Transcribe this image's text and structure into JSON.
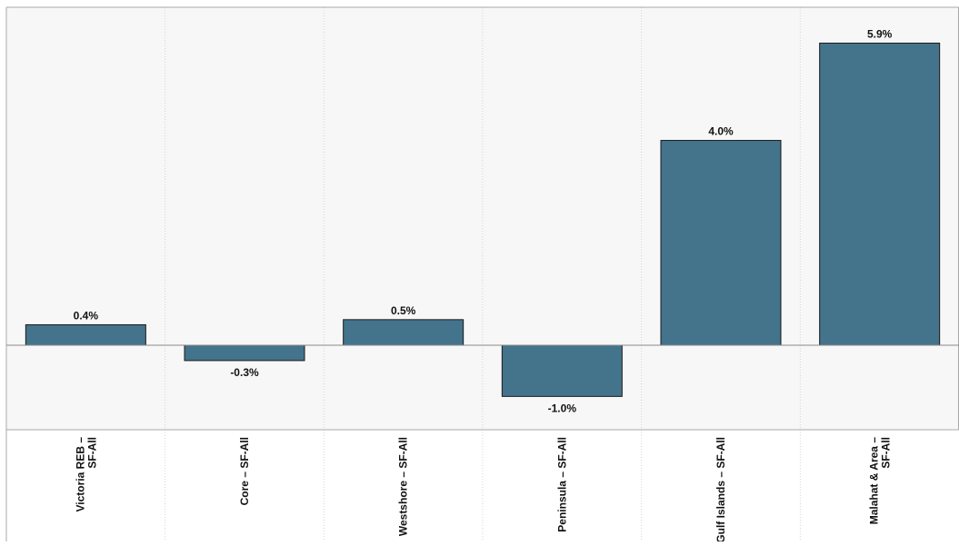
{
  "colors": {
    "bar": "#44738c",
    "bar_stroke": "#1a1a1a",
    "plot_background": "#f7f7f7",
    "grid": "#d4d4d4",
    "axis": "#a8a8a8",
    "zero_line": "#8a8a8a",
    "text": "#111111"
  },
  "chart_data": {
    "type": "bar",
    "categories": [
      "Victoria REB – SF-All",
      "Core – SF-All",
      "Westshore – SF-All",
      "Peninsula – SF-All",
      "Gulf Islands – SF-All",
      "Malahat & Area – SF-All"
    ],
    "tick_label_lines": [
      [
        "Victoria REB –",
        "SF-All"
      ],
      [
        "Core – SF-All"
      ],
      [
        "Westshore – SF-All"
      ],
      [
        "Peninsula – SF-All"
      ],
      [
        "Gulf Islands – SF-All"
      ],
      [
        "Malahat & Area –",
        "SF-All"
      ]
    ],
    "values": [
      0.4,
      -0.3,
      0.5,
      -1.0,
      4.0,
      5.9
    ],
    "data_labels": [
      "0.4%",
      "-0.3%",
      "0.5%",
      "-1.0%",
      "4.0%",
      "5.9%"
    ],
    "ylim": [
      -1.65,
      6.6
    ],
    "y_unit": "%",
    "grid": "vertical-dotted",
    "legend": "none",
    "title": "",
    "xlabel": "",
    "ylabel": ""
  }
}
